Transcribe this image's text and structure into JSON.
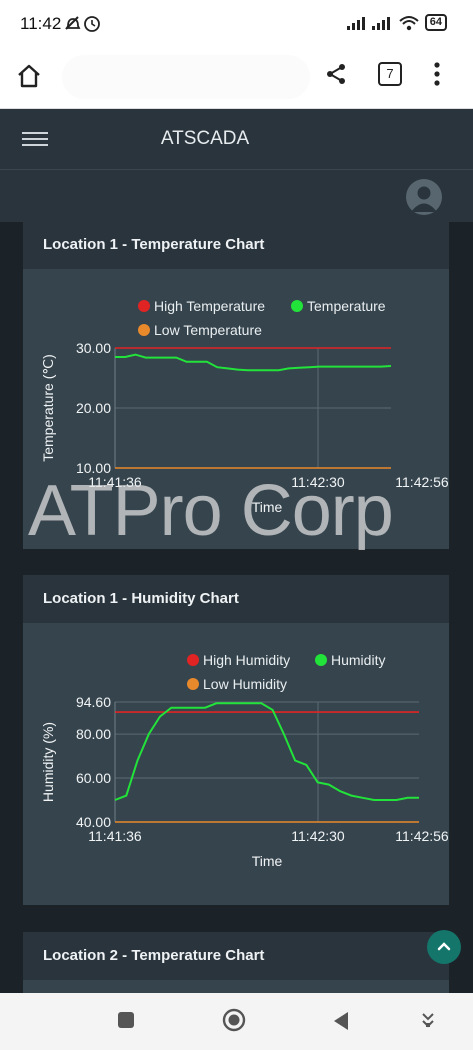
{
  "status": {
    "time": "11:42",
    "battery": "64"
  },
  "browser": {
    "tab_count": "7"
  },
  "app": {
    "title": "ATSCADA"
  },
  "watermark": "ATPro Corp",
  "cards": [
    {
      "title": "Location 1 - Temperature Chart",
      "chart_data": {
        "type": "line",
        "legend": [
          "High Temperature",
          "Temperature",
          "Low Temperature"
        ],
        "ylabel": "Temperature (℃)",
        "xlabel": "Time",
        "yticks": [
          "30.00",
          "20.00",
          "10.00"
        ],
        "xticks": [
          "11:41:36",
          "11:42:30",
          "11:42:56"
        ],
        "ylim": [
          10,
          30
        ],
        "series": [
          {
            "name": "High Temperature",
            "color": "#e02424",
            "values": [
              30,
              30
            ]
          },
          {
            "name": "Temperature",
            "color": "#22e33a",
            "values": [
              28.5,
              28.5,
              28.9,
              28.4,
              28.4,
              28.4,
              28.4,
              27.7,
              27.7,
              27.7,
              26.8,
              26.6,
              26.4,
              26.3,
              26.3,
              26.3,
              26.3,
              26.6,
              26.7,
              26.8,
              26.9,
              26.9,
              26.9,
              26.9,
              26.9,
              26.9,
              26.9,
              27.0
            ]
          },
          {
            "name": "Low Temperature",
            "color": "#e8892b",
            "values": [
              10,
              10
            ]
          }
        ]
      }
    },
    {
      "title": "Location 1 - Humidity Chart",
      "chart_data": {
        "type": "line",
        "legend": [
          "High Humidity",
          "Humidity",
          "Low Humidity"
        ],
        "ylabel": "Humidity (%)",
        "xlabel": "Time",
        "yticks": [
          "94.60",
          "80.00",
          "60.00",
          "40.00"
        ],
        "xticks": [
          "11:41:36",
          "11:42:30",
          "11:42:56"
        ],
        "ylim": [
          40,
          94.6
        ],
        "series": [
          {
            "name": "High Humidity",
            "color": "#e02424",
            "values": [
              90,
              90
            ]
          },
          {
            "name": "Humidity",
            "color": "#22e33a",
            "values": [
              50,
              52,
              68,
              80,
              88,
              92,
              92,
              92,
              92,
              94,
              94,
              94,
              94,
              94,
              91,
              80,
              68,
              66,
              58,
              57,
              54,
              52,
              51,
              50,
              50,
              50,
              51,
              51
            ]
          },
          {
            "name": "Low Humidity",
            "color": "#e8892b",
            "values": [
              40,
              40
            ]
          }
        ]
      }
    },
    {
      "title": "Location 2 - Temperature Chart"
    }
  ]
}
